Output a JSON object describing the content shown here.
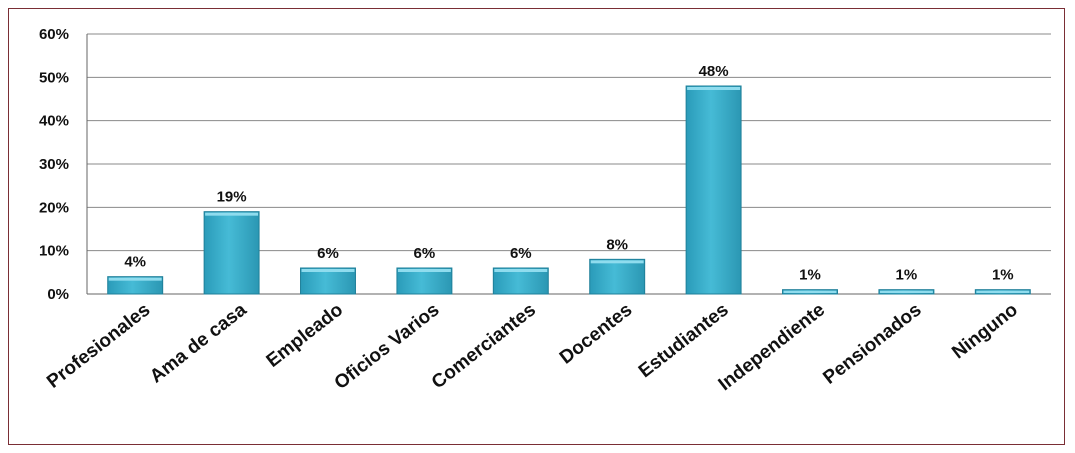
{
  "chart_data": {
    "type": "bar",
    "categories": [
      "Profesionales",
      "Ama de casa",
      "Empleado",
      "Oficios Varios",
      "Comerciantes",
      "Docentes",
      "Estudiantes",
      "Independiente",
      "Pensionados",
      "Ninguno"
    ],
    "values": [
      4,
      19,
      6,
      6,
      6,
      8,
      48,
      1,
      1,
      1
    ],
    "data_labels": [
      "4%",
      "19%",
      "6%",
      "6%",
      "6%",
      "8%",
      "48%",
      "1%",
      "1%",
      "1%"
    ],
    "y_ticks": [
      "0%",
      "10%",
      "20%",
      "30%",
      "40%",
      "50%",
      "60%"
    ],
    "ylim": [
      0,
      60
    ],
    "grid": true,
    "title": "",
    "xlabel": "",
    "ylabel": "",
    "colors": {
      "bar_fill": "#3fb2cf",
      "bar_top": "#8fdcee",
      "bar_edge": "#1e7f99",
      "grid": "#8a8a8a",
      "frame": "#7a2e35",
      "text": "#111111"
    }
  }
}
